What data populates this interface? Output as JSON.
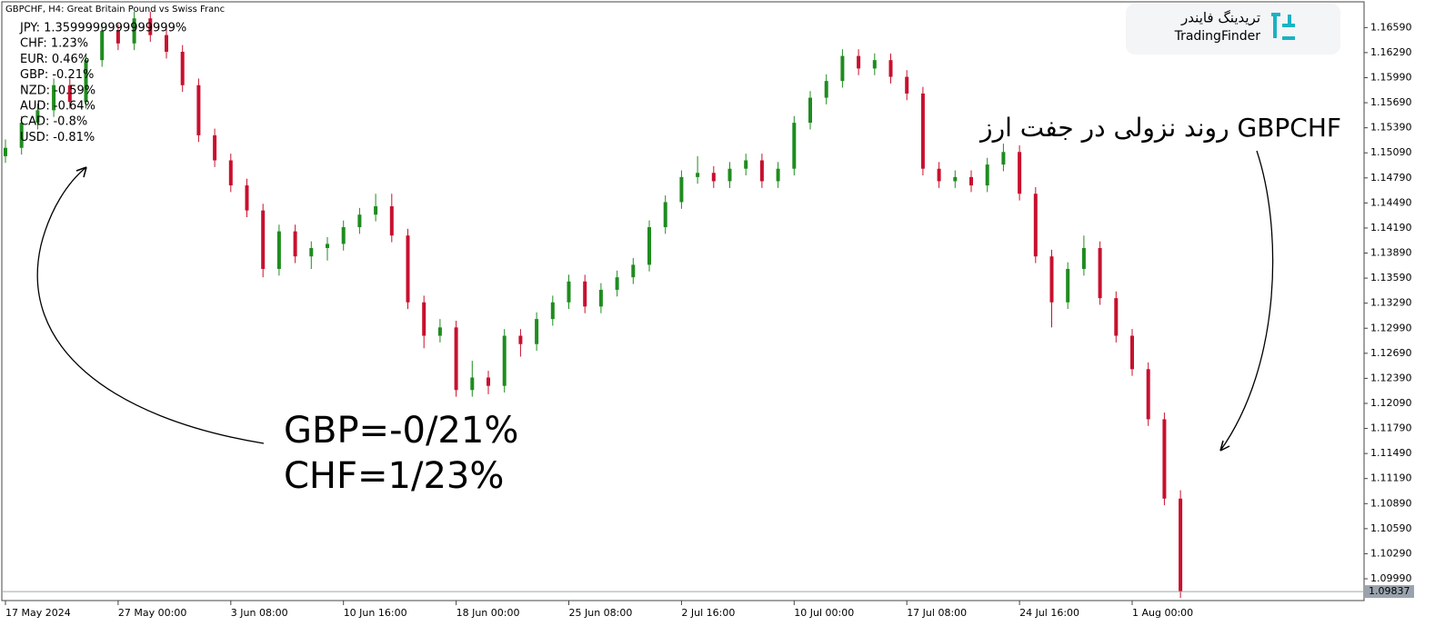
{
  "chart_data": {
    "type": "candlestick",
    "title": "GBPCHF, H4:  Great Britain Pound vs Swiss Franc",
    "strength_lines": [
      "JPY: 1.3599999999999999%",
      "CHF: 1.23%",
      "EUR: 0.46%",
      "GBP: -0.21%",
      "NZD: -0.59%",
      "AUD: -0.64%",
      "CAD: -0.8%",
      "USD: -0.81%"
    ],
    "annotation_left": [
      "GBP=-0/21%",
      "CHF=1/23%"
    ],
    "annotation_right": "روند نزولی در جفت ارز GBPCHF",
    "logo": {
      "name": "تریدینگ فایندر",
      "brand": "TradingFinder"
    },
    "up_color": "#1f8c1f",
    "down_color": "#c8102e",
    "categories": [
      "17 May 2024",
      null,
      null,
      null,
      null,
      null,
      null,
      "27 May 00:00",
      null,
      null,
      null,
      null,
      null,
      null,
      "3 Jun 08:00",
      null,
      null,
      null,
      null,
      null,
      null,
      "10 Jun 16:00",
      null,
      null,
      null,
      null,
      null,
      null,
      "18 Jun 00:00",
      null,
      null,
      null,
      null,
      null,
      null,
      "25 Jun 08:00",
      null,
      null,
      null,
      null,
      null,
      null,
      "2 Jul 16:00",
      null,
      null,
      null,
      null,
      null,
      null,
      "10 Jul 00:00",
      null,
      null,
      null,
      null,
      null,
      null,
      "17 Jul 08:00",
      null,
      null,
      null,
      null,
      null,
      null,
      "24 Jul 16:00",
      null,
      null,
      null,
      null,
      null,
      null,
      "1 Aug 00:00",
      null,
      null,
      null
    ],
    "open": [
      1.1505,
      1.1515,
      1.1545,
      1.156,
      1.159,
      1.157,
      1.162,
      1.1655,
      1.164,
      1.167,
      1.165,
      1.163,
      1.159,
      1.153,
      1.15,
      1.147,
      1.144,
      1.137,
      1.1415,
      1.1385,
      1.1395,
      1.14,
      1.142,
      1.1435,
      1.1445,
      1.141,
      1.133,
      1.129,
      1.13,
      1.1225,
      1.124,
      1.123,
      1.129,
      1.128,
      1.131,
      1.133,
      1.1355,
      1.1325,
      1.1345,
      1.136,
      1.1375,
      1.142,
      1.145,
      1.148,
      1.1485,
      1.1475,
      1.149,
      1.15,
      1.1475,
      1.149,
      1.1545,
      1.1575,
      1.1595,
      1.1625,
      1.161,
      1.162,
      1.16,
      1.158,
      1.149,
      1.1475,
      1.148,
      1.147,
      1.1495,
      1.151,
      1.146,
      1.1385,
      1.133,
      1.137,
      1.1395,
      1.1335,
      1.129,
      1.125,
      1.119,
      1.1095
    ],
    "high": [
      1.1525,
      1.1553,
      1.1568,
      1.1598,
      1.1598,
      1.1628,
      1.1663,
      1.1663,
      1.1678,
      1.1678,
      1.1658,
      1.1638,
      1.1598,
      1.1538,
      1.1508,
      1.1478,
      1.1448,
      1.1423,
      1.1423,
      1.1403,
      1.1408,
      1.1428,
      1.1443,
      1.146,
      1.146,
      1.1418,
      1.1338,
      1.131,
      1.1308,
      1.126,
      1.1248,
      1.1298,
      1.1298,
      1.1318,
      1.1338,
      1.1363,
      1.1363,
      1.1353,
      1.1368,
      1.1383,
      1.1428,
      1.1458,
      1.1488,
      1.1505,
      1.1493,
      1.1498,
      1.1508,
      1.1508,
      1.1498,
      1.1553,
      1.1583,
      1.1603,
      1.1633,
      1.1633,
      1.1628,
      1.1628,
      1.1608,
      1.1588,
      1.1498,
      1.1488,
      1.1488,
      1.1503,
      1.152,
      1.1518,
      1.1468,
      1.1393,
      1.1378,
      1.141,
      1.1403,
      1.1343,
      1.1298,
      1.1258,
      1.1198,
      1.1105
    ],
    "low": [
      1.1497,
      1.1507,
      1.1537,
      1.1552,
      1.1562,
      1.1562,
      1.1612,
      1.1632,
      1.1632,
      1.1642,
      1.1622,
      1.1582,
      1.1522,
      1.1492,
      1.1462,
      1.1432,
      1.136,
      1.1362,
      1.1377,
      1.137,
      1.138,
      1.1392,
      1.1412,
      1.1427,
      1.1402,
      1.1322,
      1.1275,
      1.1282,
      1.1217,
      1.1217,
      1.122,
      1.1222,
      1.1265,
      1.1272,
      1.1302,
      1.1322,
      1.1317,
      1.1317,
      1.1337,
      1.1352,
      1.1367,
      1.1412,
      1.1442,
      1.1472,
      1.1467,
      1.1467,
      1.1482,
      1.1467,
      1.1467,
      1.1482,
      1.1537,
      1.1567,
      1.1587,
      1.1602,
      1.1602,
      1.1592,
      1.1572,
      1.1482,
      1.1467,
      1.1467,
      1.1462,
      1.1462,
      1.1487,
      1.1452,
      1.1377,
      1.13,
      1.1322,
      1.1362,
      1.1327,
      1.1282,
      1.1242,
      1.1182,
      1.1087,
      1.0976
    ],
    "close": [
      1.1515,
      1.1545,
      1.156,
      1.159,
      1.157,
      1.162,
      1.1655,
      1.164,
      1.167,
      1.165,
      1.163,
      1.159,
      1.153,
      1.15,
      1.147,
      1.144,
      1.137,
      1.1415,
      1.1385,
      1.1395,
      1.14,
      1.142,
      1.1435,
      1.1445,
      1.141,
      1.133,
      1.129,
      1.13,
      1.1225,
      1.124,
      1.123,
      1.129,
      1.128,
      1.131,
      1.133,
      1.1355,
      1.1325,
      1.1345,
      1.136,
      1.1375,
      1.142,
      1.145,
      1.148,
      1.1485,
      1.1475,
      1.149,
      1.15,
      1.1475,
      1.149,
      1.1545,
      1.1575,
      1.1595,
      1.1625,
      1.161,
      1.162,
      1.16,
      1.158,
      1.149,
      1.1475,
      1.148,
      1.147,
      1.1495,
      1.151,
      1.146,
      1.1385,
      1.133,
      1.137,
      1.1395,
      1.1335,
      1.129,
      1.125,
      1.119,
      1.1095,
      1.0984
    ],
    "ylim": [
      1.0974,
      1.1692
    ],
    "yticks": [
      {
        "value": 1.1659,
        "label": "1.16590"
      },
      {
        "value": 1.1629,
        "label": "1.16290"
      },
      {
        "value": 1.1599,
        "label": "1.15990"
      },
      {
        "value": 1.1569,
        "label": "1.15690"
      },
      {
        "value": 1.1539,
        "label": "1.15390"
      },
      {
        "value": 1.1509,
        "label": "1.15090"
      },
      {
        "value": 1.1479,
        "label": "1.14790"
      },
      {
        "value": 1.1449,
        "label": "1.14490"
      },
      {
        "value": 1.1419,
        "label": "1.14190"
      },
      {
        "value": 1.1389,
        "label": "1.13890"
      },
      {
        "value": 1.1359,
        "label": "1.13590"
      },
      {
        "value": 1.1329,
        "label": "1.13290"
      },
      {
        "value": 1.1299,
        "label": "1.12990"
      },
      {
        "value": 1.1269,
        "label": "1.12690"
      },
      {
        "value": 1.1239,
        "label": "1.12390"
      },
      {
        "value": 1.1209,
        "label": "1.12090"
      },
      {
        "value": 1.1179,
        "label": "1.11790"
      },
      {
        "value": 1.1149,
        "label": "1.11490"
      },
      {
        "value": 1.1119,
        "label": "1.11190"
      },
      {
        "value": 1.1089,
        "label": "1.10890"
      },
      {
        "value": 1.1059,
        "label": "1.10590"
      },
      {
        "value": 1.1029,
        "label": "1.10290"
      },
      {
        "value": 1.0999,
        "label": "1.09990"
      }
    ],
    "last_price": {
      "value": 1.09837,
      "label": "1.09837"
    }
  }
}
